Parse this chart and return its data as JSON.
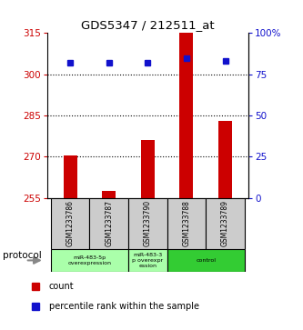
{
  "title": "GDS5347 / 212511_at",
  "samples": [
    "GSM1233786",
    "GSM1233787",
    "GSM1233790",
    "GSM1233788",
    "GSM1233789"
  ],
  "bar_values": [
    270.5,
    257.5,
    276.0,
    315.0,
    283.0
  ],
  "percentile_values": [
    82,
    82,
    82,
    85,
    83
  ],
  "ylim_left": [
    255,
    315
  ],
  "ylim_right": [
    0,
    100
  ],
  "yticks_left": [
    255,
    270,
    285,
    300,
    315
  ],
  "yticks_right": [
    0,
    25,
    50,
    75,
    100
  ],
  "ytick_labels_right": [
    "0",
    "25",
    "50",
    "75",
    "100%"
  ],
  "bar_color": "#cc0000",
  "dot_color": "#1111cc",
  "grid_lines": [
    270,
    285,
    300
  ],
  "protocol_label": "protocol",
  "legend_count_label": "count",
  "legend_percentile_label": "percentile rank within the sample",
  "background_color": "#ffffff",
  "plot_bg_color": "#ffffff",
  "tick_label_color_left": "#cc0000",
  "tick_label_color_right": "#1111cc",
  "sample_box_color": "#cccccc",
  "proto_color_light": "#aaffaa",
  "proto_color_dark": "#33cc33",
  "bar_width": 0.35
}
